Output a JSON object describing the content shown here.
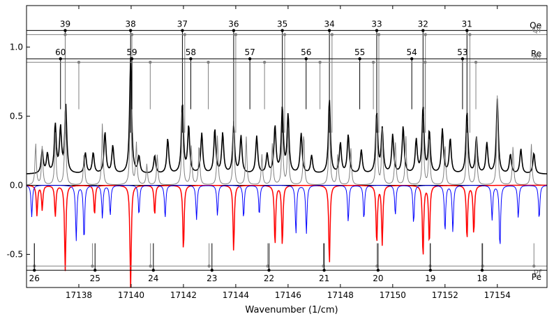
{
  "chart_data": {
    "type": "line",
    "xlabel": "Wavenumber (1/cm)",
    "ylabel": "",
    "xlim": [
      17136.0,
      17155.9
    ],
    "ylim": [
      -0.74,
      1.3
    ],
    "x_ticks": [
      17138,
      17140,
      17142,
      17144,
      17146,
      17148,
      17150,
      17152,
      17154
    ],
    "y_ticks": [
      -0.5,
      0.0,
      0.5,
      1.0
    ],
    "grid": false,
    "colors": {
      "observed": "#000000",
      "simulated": "#808080",
      "absorption_main": "#ff0000",
      "absorption_secondary": "#0000ff",
      "branch_Qe": "#000000",
      "branch_Qf": "#808080",
      "branch_Re": "#000000",
      "branch_Rf": "#808080",
      "branch_Pf": "#808080",
      "branch_Pe": "#000000"
    },
    "branches": [
      {
        "label": "Qe",
        "color": "black",
        "level": 1.12,
        "numbered": true,
        "lines": [
          {
            "J": "39",
            "x": 17137.48
          },
          {
            "J": "38",
            "x": 17139.98
          },
          {
            "J": "37",
            "x": 17141.96
          },
          {
            "J": "36",
            "x": 17143.92
          },
          {
            "J": "35",
            "x": 17145.78
          },
          {
            "J": "34",
            "x": 17147.58
          },
          {
            "J": "33",
            "x": 17149.39
          },
          {
            "J": "32",
            "x": 17151.16
          },
          {
            "J": "31",
            "x": 17152.84
          }
        ]
      },
      {
        "label": "Qf",
        "color": "gray",
        "level": 1.09,
        "numbered": false,
        "lines": [
          {
            "x": 17137.48
          },
          {
            "x": 17140.03
          },
          {
            "x": 17142.05
          },
          {
            "x": 17144.0
          },
          {
            "x": 17145.87
          },
          {
            "x": 17147.68
          },
          {
            "x": 17149.47
          },
          {
            "x": 17151.25
          },
          {
            "x": 17152.95
          }
        ]
      },
      {
        "label": "Re",
        "color": "black",
        "level": 0.915,
        "numbered": true,
        "lines": [
          {
            "J": "60",
            "x": 17137.3
          },
          {
            "J": "59",
            "x": 17140.03
          },
          {
            "J": "58",
            "x": 17142.28
          },
          {
            "J": "57",
            "x": 17144.54
          },
          {
            "J": "56",
            "x": 17146.69
          },
          {
            "J": "55",
            "x": 17148.74
          },
          {
            "J": "54",
            "x": 17150.73
          },
          {
            "J": "53",
            "x": 17152.67
          }
        ]
      },
      {
        "label": "Rf",
        "color": "gray",
        "level": 0.89,
        "numbered": false,
        "lines": [
          {
            "x": 17138.0
          },
          {
            "x": 17140.73
          },
          {
            "x": 17142.95
          },
          {
            "x": 17145.1
          },
          {
            "x": 17147.22
          },
          {
            "x": 17149.26
          },
          {
            "x": 17151.24
          },
          {
            "x": 17153.18
          }
        ]
      },
      {
        "label": "Pf",
        "color": "gray",
        "level": -0.585,
        "numbered": false,
        "lines": [
          {
            "x": 17136.3
          },
          {
            "x": 17138.52
          },
          {
            "x": 17140.74
          },
          {
            "x": 17142.98
          },
          {
            "x": 17145.22
          },
          {
            "x": 17147.35
          },
          {
            "x": 17149.4
          },
          {
            "x": 17151.43
          },
          {
            "x": 17153.44
          },
          {
            "x": 17155.4
          }
        ]
      },
      {
        "label": "Pe",
        "color": "black",
        "level": -0.615,
        "numbered": true,
        "lines": [
          {
            "J": "26",
            "x": 17136.3
          },
          {
            "J": "25",
            "x": 17138.62
          },
          {
            "J": "24",
            "x": 17140.85
          },
          {
            "J": "23",
            "x": 17143.09
          },
          {
            "J": "22",
            "x": 17145.27
          },
          {
            "J": "21",
            "x": 17147.38
          },
          {
            "J": "20",
            "x": 17149.44
          },
          {
            "J": "19",
            "x": 17151.44
          },
          {
            "J": "18",
            "x": 17153.42
          }
        ]
      }
    ],
    "series": [
      {
        "role": "observed",
        "color": "black",
        "peaks": [
          [
            17136.6,
            0.25
          ],
          [
            17136.8,
            0.22
          ],
          [
            17137.1,
            0.43
          ],
          [
            17137.3,
            0.4
          ],
          [
            17137.5,
            0.57
          ],
          [
            17138.25,
            0.23
          ],
          [
            17138.55,
            0.23
          ],
          [
            17139.0,
            0.38
          ],
          [
            17139.3,
            0.28
          ],
          [
            17139.98,
            0.92
          ],
          [
            17140.3,
            0.2
          ],
          [
            17140.9,
            0.21
          ],
          [
            17141.4,
            0.33
          ],
          [
            17141.96,
            0.59
          ],
          [
            17142.2,
            0.42
          ],
          [
            17142.7,
            0.37
          ],
          [
            17143.2,
            0.4
          ],
          [
            17143.5,
            0.37
          ],
          [
            17143.92,
            0.42
          ],
          [
            17144.2,
            0.35
          ],
          [
            17144.8,
            0.35
          ],
          [
            17145.2,
            0.22
          ],
          [
            17145.5,
            0.42
          ],
          [
            17145.78,
            0.55
          ],
          [
            17146.0,
            0.5
          ],
          [
            17146.5,
            0.37
          ],
          [
            17146.9,
            0.21
          ],
          [
            17147.58,
            0.62
          ],
          [
            17148.0,
            0.3
          ],
          [
            17148.3,
            0.36
          ],
          [
            17148.8,
            0.25
          ],
          [
            17149.39,
            0.52
          ],
          [
            17149.6,
            0.4
          ],
          [
            17150.0,
            0.36
          ],
          [
            17150.4,
            0.42
          ],
          [
            17150.9,
            0.32
          ],
          [
            17151.16,
            0.56
          ],
          [
            17151.4,
            0.38
          ],
          [
            17151.9,
            0.4
          ],
          [
            17152.2,
            0.33
          ],
          [
            17152.84,
            0.53
          ],
          [
            17153.2,
            0.34
          ],
          [
            17153.6,
            0.3
          ],
          [
            17154.0,
            0.62
          ],
          [
            17154.5,
            0.22
          ],
          [
            17154.9,
            0.26
          ],
          [
            17155.4,
            0.23
          ]
        ],
        "baseline": 0.08
      },
      {
        "role": "simulated",
        "color": "gray",
        "peaks": [
          [
            17136.35,
            0.3
          ],
          [
            17136.6,
            0.28
          ],
          [
            17137.1,
            0.39
          ],
          [
            17137.48,
            0.57
          ],
          [
            17138.2,
            0.24
          ],
          [
            17138.9,
            0.45
          ],
          [
            17139.98,
            0.75
          ],
          [
            17140.2,
            0.3
          ],
          [
            17140.6,
            0.15
          ],
          [
            17141.0,
            0.22
          ],
          [
            17141.96,
            0.6
          ],
          [
            17142.3,
            0.28
          ],
          [
            17142.6,
            0.3
          ],
          [
            17143.3,
            0.36
          ],
          [
            17143.92,
            0.47
          ],
          [
            17144.4,
            0.35
          ],
          [
            17145.0,
            0.22
          ],
          [
            17145.4,
            0.3
          ],
          [
            17145.78,
            0.46
          ],
          [
            17146.0,
            0.42
          ],
          [
            17146.6,
            0.38
          ],
          [
            17147.58,
            0.56
          ],
          [
            17147.9,
            0.22
          ],
          [
            17148.4,
            0.27
          ],
          [
            17149.39,
            0.55
          ],
          [
            17149.6,
            0.4
          ],
          [
            17150.1,
            0.32
          ],
          [
            17150.5,
            0.36
          ],
          [
            17151.16,
            0.53
          ],
          [
            17151.4,
            0.36
          ],
          [
            17152.0,
            0.3
          ],
          [
            17152.84,
            0.5
          ],
          [
            17153.2,
            0.35
          ],
          [
            17154.0,
            0.65
          ],
          [
            17154.6,
            0.28
          ],
          [
            17155.3,
            0.3
          ]
        ],
        "baseline": 0.0
      },
      {
        "role": "absorption_main",
        "color": "red",
        "dips": [
          [
            17136.4,
            -0.22
          ],
          [
            17136.6,
            -0.18
          ],
          [
            17137.1,
            -0.23
          ],
          [
            17137.48,
            -0.62
          ],
          [
            17138.6,
            -0.22
          ],
          [
            17139.98,
            -0.76
          ],
          [
            17140.9,
            -0.22
          ],
          [
            17142.0,
            -0.48
          ],
          [
            17143.92,
            -0.48
          ],
          [
            17145.5,
            -0.44
          ],
          [
            17145.78,
            -0.44
          ],
          [
            17147.58,
            -0.58
          ],
          [
            17149.39,
            -0.43
          ],
          [
            17149.6,
            -0.43
          ],
          [
            17151.16,
            -0.53
          ],
          [
            17151.4,
            -0.43
          ],
          [
            17152.84,
            -0.4
          ],
          [
            17153.1,
            -0.36
          ]
        ]
      },
      {
        "role": "absorption_secondary",
        "color": "blue",
        "dips": [
          [
            17136.2,
            -0.23
          ],
          [
            17137.9,
            -0.4
          ],
          [
            17138.2,
            -0.4
          ],
          [
            17138.9,
            -0.24
          ],
          [
            17139.2,
            -0.22
          ],
          [
            17140.3,
            -0.22
          ],
          [
            17141.3,
            -0.24
          ],
          [
            17142.5,
            -0.25
          ],
          [
            17143.3,
            -0.22
          ],
          [
            17144.3,
            -0.24
          ],
          [
            17144.9,
            -0.22
          ],
          [
            17146.3,
            -0.35
          ],
          [
            17146.7,
            -0.35
          ],
          [
            17148.3,
            -0.27
          ],
          [
            17148.9,
            -0.25
          ],
          [
            17150.1,
            -0.22
          ],
          [
            17150.8,
            -0.28
          ],
          [
            17152.0,
            -0.34
          ],
          [
            17152.3,
            -0.34
          ],
          [
            17153.8,
            -0.25
          ],
          [
            17154.1,
            -0.46
          ],
          [
            17154.8,
            -0.24
          ],
          [
            17155.6,
            -0.25
          ]
        ]
      }
    ]
  }
}
